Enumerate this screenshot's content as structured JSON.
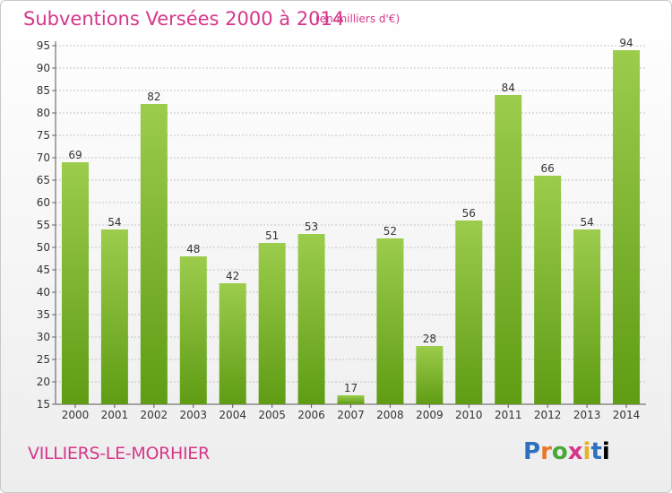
{
  "header": {
    "title": "Subventions Versées 2000 à 2014",
    "subtitle": "(en milliers d'€)"
  },
  "footer": {
    "commune": "VILLIERS-LE-MORHIER",
    "logo_letters": [
      "P",
      "r",
      "o",
      "x",
      "i",
      "t",
      "i"
    ]
  },
  "colors": {
    "title": "#d6378a",
    "bar_light": "#9ccc4c",
    "bar_dark": "#5f9c14",
    "grid": "#c4c4c4"
  },
  "chart_data": {
    "type": "bar",
    "categories": [
      "2000",
      "2001",
      "2002",
      "2003",
      "2004",
      "2005",
      "2006",
      "2007",
      "2008",
      "2009",
      "2010",
      "2011",
      "2012",
      "2013",
      "2014"
    ],
    "values": [
      69,
      54,
      82,
      48,
      42,
      51,
      53,
      17,
      52,
      28,
      56,
      84,
      66,
      54,
      94
    ],
    "ylim": [
      15,
      95
    ],
    "yticks": [
      15,
      20,
      25,
      30,
      35,
      40,
      45,
      50,
      55,
      60,
      65,
      70,
      75,
      80,
      85,
      90,
      95
    ],
    "grid": true,
    "data_labels": true
  }
}
